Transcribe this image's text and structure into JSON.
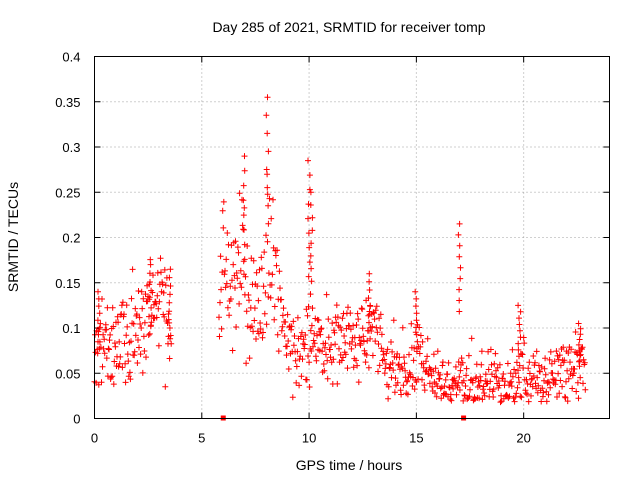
{
  "chart_data": {
    "type": "scatter",
    "title": "Day 285 of 2021, SRMTID for receiver tomp",
    "xlabel": "GPS time / hours",
    "ylabel": "SRMTID / TECUs",
    "xlim": [
      0,
      24
    ],
    "ylim": [
      0,
      0.4
    ],
    "xticks": [
      "0",
      "5",
      "10",
      "15",
      "20"
    ],
    "yticks": [
      "0",
      "0.05",
      "0.1",
      "0.15",
      "0.2",
      "0.25",
      "0.3",
      "0.35",
      "0.4"
    ],
    "grid": true,
    "marker": "+",
    "color": "#ff0000",
    "data_gap_markers": [
      6.0,
      17.2
    ],
    "series": [
      {
        "name": "SRMTID",
        "profile": [
          [
            0.0,
            0.07
          ],
          [
            0.2,
            0.085
          ],
          [
            0.4,
            0.09
          ],
          [
            0.6,
            0.08
          ],
          [
            0.8,
            0.075
          ],
          [
            1.0,
            0.08
          ],
          [
            1.2,
            0.085
          ],
          [
            1.4,
            0.09
          ],
          [
            1.6,
            0.1
          ],
          [
            1.8,
            0.1
          ],
          [
            2.0,
            0.1
          ],
          [
            2.2,
            0.105
          ],
          [
            2.4,
            0.11
          ],
          [
            2.6,
            0.12
          ],
          [
            2.8,
            0.125
          ],
          [
            3.0,
            0.13
          ],
          [
            3.2,
            0.13
          ],
          [
            3.4,
            0.1
          ],
          [
            3.6,
            0.1
          ],
          [
            5.8,
            0.13
          ],
          [
            6.0,
            0.16
          ],
          [
            6.3,
            0.15
          ],
          [
            6.6,
            0.15
          ],
          [
            6.9,
            0.2
          ],
          [
            7.2,
            0.12
          ],
          [
            7.5,
            0.12
          ],
          [
            7.8,
            0.15
          ],
          [
            8.1,
            0.2
          ],
          [
            8.4,
            0.18
          ],
          [
            8.7,
            0.12
          ],
          [
            9.0,
            0.08
          ],
          [
            9.4,
            0.07
          ],
          [
            9.8,
            0.07
          ],
          [
            10.0,
            0.09
          ],
          [
            10.5,
            0.08
          ],
          [
            11.0,
            0.085
          ],
          [
            11.5,
            0.09
          ],
          [
            12.0,
            0.08
          ],
          [
            12.5,
            0.08
          ],
          [
            13.0,
            0.1
          ],
          [
            13.5,
            0.06
          ],
          [
            14.0,
            0.06
          ],
          [
            14.5,
            0.055
          ],
          [
            15.0,
            0.065
          ],
          [
            15.5,
            0.05
          ],
          [
            16.0,
            0.04
          ],
          [
            16.5,
            0.035
          ],
          [
            17.0,
            0.035
          ],
          [
            17.5,
            0.04
          ],
          [
            18.0,
            0.04
          ],
          [
            18.5,
            0.045
          ],
          [
            19.0,
            0.04
          ],
          [
            19.5,
            0.04
          ],
          [
            20.0,
            0.045
          ],
          [
            20.5,
            0.04
          ],
          [
            21.0,
            0.04
          ],
          [
            21.5,
            0.05
          ],
          [
            22.0,
            0.06
          ],
          [
            22.5,
            0.06
          ],
          [
            22.9,
            0.06
          ]
        ],
        "spikes": [
          [
            7.0,
            0.29
          ],
          [
            8.05,
            0.355
          ],
          [
            10.0,
            0.285
          ],
          [
            10.1,
            0.25
          ],
          [
            12.8,
            0.16
          ],
          [
            15.0,
            0.14
          ],
          [
            17.0,
            0.215
          ],
          [
            19.8,
            0.125
          ],
          [
            22.6,
            0.105
          ],
          [
            0.2,
            0.14
          ],
          [
            2.6,
            0.17
          ],
          [
            3.5,
            0.165
          ]
        ]
      }
    ]
  }
}
